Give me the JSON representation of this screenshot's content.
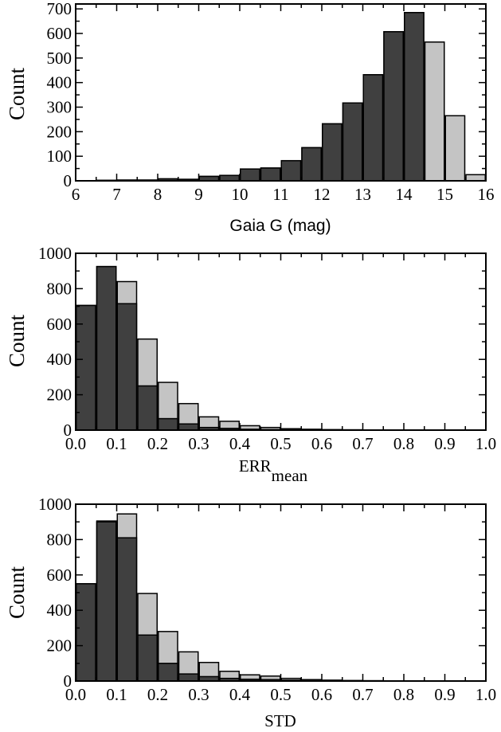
{
  "colors": {
    "dark": "#404040",
    "light": "#c4c4c4",
    "edge": "#000000"
  },
  "chart_data": [
    {
      "type": "bar",
      "ylabel": "Count",
      "xlabel": "Gaia G (mag)",
      "xlim": [
        6,
        16
      ],
      "ylim": [
        0,
        720
      ],
      "xticks": [
        "6",
        "7",
        "8",
        "9",
        "10",
        "11",
        "12",
        "13",
        "14",
        "15",
        "16"
      ],
      "yticks": [
        "0",
        "100",
        "200",
        "300",
        "400",
        "500",
        "600",
        "700"
      ],
      "bins": [
        6.5,
        7,
        7.5,
        8,
        8.5,
        9,
        9.5,
        10,
        10.5,
        11,
        11.5,
        12,
        12.5,
        13,
        13.5,
        14,
        14.5,
        15,
        15.5
      ],
      "series": [
        {
          "values": [
            2,
            3,
            3,
            8,
            6,
            18,
            22,
            48,
            52,
            82,
            135,
            232,
            317,
            432,
            607,
            685,
            0,
            0,
            0
          ]
        },
        {
          "values": [
            2,
            3,
            3,
            8,
            6,
            18,
            22,
            48,
            52,
            82,
            135,
            232,
            317,
            432,
            607,
            685,
            565,
            265,
            25
          ]
        }
      ]
    },
    {
      "type": "bar",
      "ylabel": "Count",
      "xlabel": "ERR",
      "xlabel_sub": "mean",
      "xlim": [
        0,
        1
      ],
      "ylim": [
        0,
        1000
      ],
      "xticks": [
        "0.0",
        "0.1",
        "0.2",
        "0.3",
        "0.4",
        "0.5",
        "0.6",
        "0.7",
        "0.8",
        "0.9",
        "1.0"
      ],
      "yticks": [
        "0",
        "200",
        "400",
        "600",
        "800",
        "1000"
      ],
      "bins": [
        0,
        0.05,
        0.1,
        0.15,
        0.2,
        0.25,
        0.3,
        0.35,
        0.4,
        0.45,
        0.5,
        0.55,
        0.6,
        0.65,
        0.7,
        0.75,
        0.8,
        0.85,
        0.9,
        0.95
      ],
      "series": [
        {
          "values": [
            705,
            925,
            715,
            250,
            65,
            35,
            15,
            10,
            5,
            3,
            2,
            1,
            1,
            0,
            0,
            0,
            0,
            0,
            0,
            0
          ]
        },
        {
          "values": [
            705,
            925,
            840,
            515,
            270,
            150,
            75,
            50,
            25,
            15,
            8,
            5,
            3,
            2,
            1,
            1,
            0,
            0,
            0,
            0
          ]
        }
      ]
    },
    {
      "type": "bar",
      "ylabel": "Count",
      "xlabel": "STD",
      "xlim": [
        0,
        1
      ],
      "ylim": [
        0,
        1000
      ],
      "xticks": [
        "0.0",
        "0.1",
        "0.2",
        "0.3",
        "0.4",
        "0.5",
        "0.6",
        "0.7",
        "0.8",
        "0.9",
        "1.0"
      ],
      "yticks": [
        "0",
        "200",
        "400",
        "600",
        "800",
        "1000"
      ],
      "bins": [
        0,
        0.05,
        0.1,
        0.15,
        0.2,
        0.25,
        0.3,
        0.35,
        0.4,
        0.45,
        0.5,
        0.55,
        0.6,
        0.65,
        0.7,
        0.75,
        0.8,
        0.85,
        0.9,
        0.95
      ],
      "series": [
        {
          "values": [
            550,
            900,
            810,
            260,
            100,
            40,
            25,
            15,
            10,
            8,
            5,
            3,
            2,
            1,
            0,
            0,
            0,
            0,
            0,
            0
          ]
        },
        {
          "values": [
            550,
            905,
            945,
            495,
            280,
            165,
            105,
            55,
            35,
            28,
            15,
            8,
            5,
            3,
            2,
            1,
            1,
            0,
            0,
            0
          ]
        }
      ]
    }
  ]
}
